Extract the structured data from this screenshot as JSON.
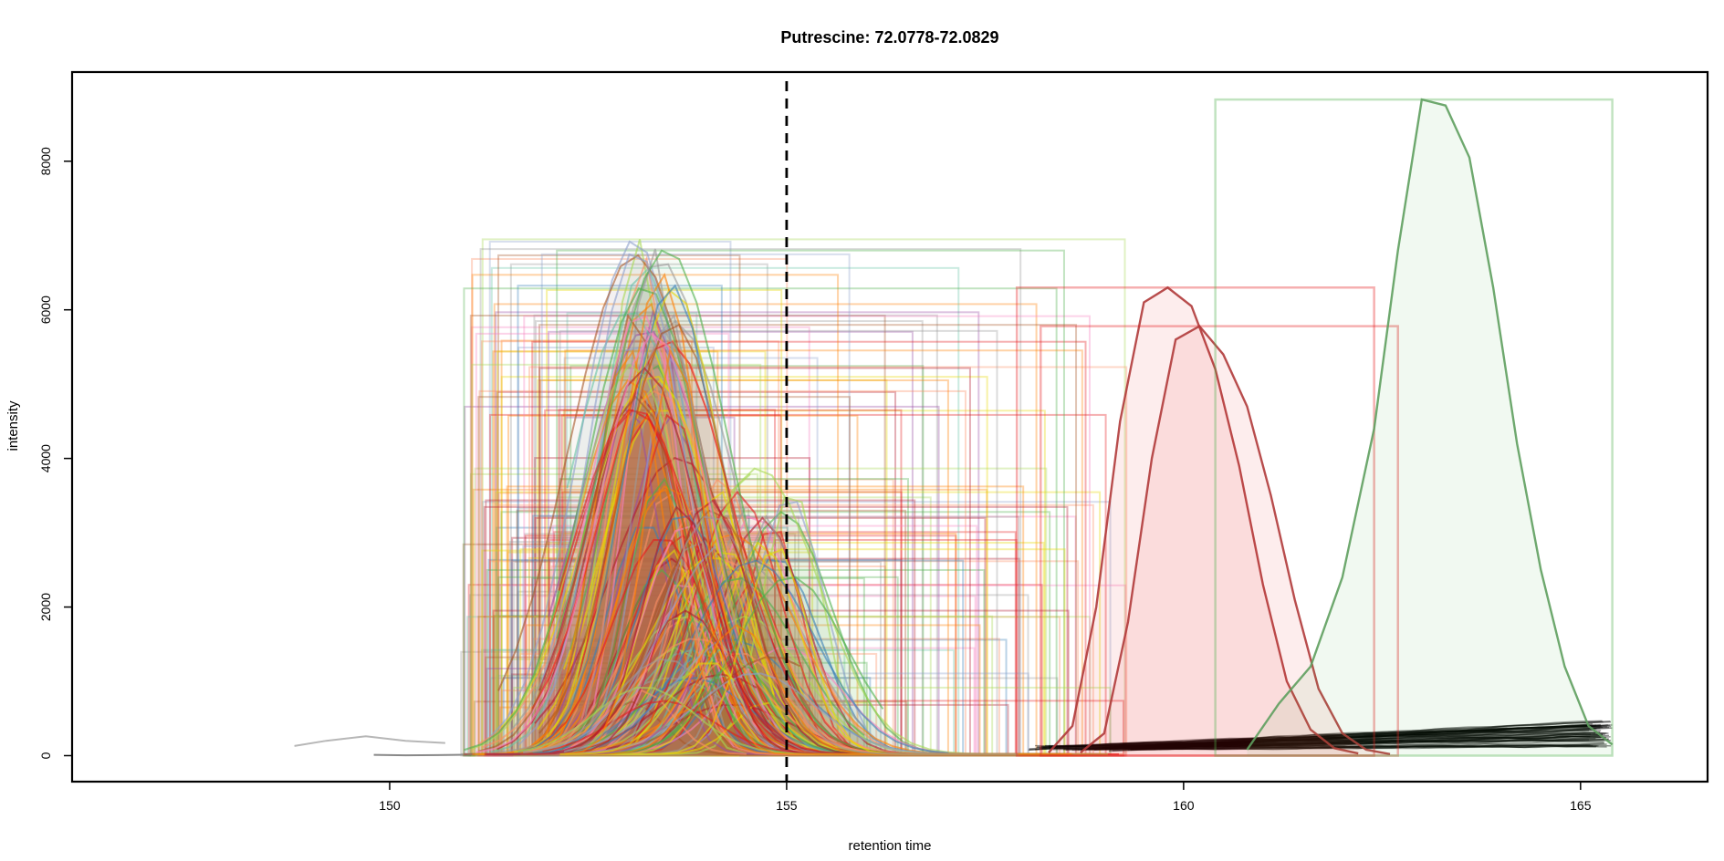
{
  "chart_data": {
    "type": "line",
    "title": "Putrescine: 72.0778-72.0829",
    "xlabel": "retention time",
    "ylabel": "intensity",
    "xlim": [
      146,
      166.6
    ],
    "ylim": [
      -350,
      9200
    ],
    "xticks": [
      150,
      155,
      160,
      165
    ],
    "yticks": [
      0,
      2000,
      4000,
      6000,
      8000
    ],
    "grid": false,
    "legend": "none",
    "reference_line": {
      "x": 155,
      "style": "dashed",
      "color": "#000000"
    },
    "series_palette": [
      "#E41A1C",
      "#377EB8",
      "#4DAF4A",
      "#984EA3",
      "#FF7F00",
      "#E6D800",
      "#A65628",
      "#F781BF",
      "#999999",
      "#66C2A5",
      "#FC8D62",
      "#8DA0CB",
      "#A6D854",
      "#B2182B"
    ],
    "background_traces": [
      {
        "x": [
          148.8,
          149.2,
          149.7,
          150.2,
          150.7
        ],
        "y": [
          130,
          200,
          260,
          200,
          170
        ],
        "color": "#999999"
      },
      {
        "x": [
          149.8,
          150.2,
          150.6,
          151.0,
          151.4
        ],
        "y": [
          10,
          5,
          8,
          12,
          20
        ],
        "color": "#555555"
      }
    ],
    "highlighted_peaks": [
      {
        "label": "peak-red-1",
        "color": "#E41A1C",
        "line_color": "#B03A3A",
        "rt_range": [
          157.9,
          162.4
        ],
        "max_intensity": 6300,
        "x": [
          158.3,
          158.6,
          158.9,
          159.2,
          159.5,
          159.8,
          160.1,
          160.4,
          160.7,
          161.0,
          161.3,
          161.6,
          161.9,
          162.2
        ],
        "y": [
          40,
          400,
          2000,
          4500,
          6100,
          6300,
          6050,
          5200,
          3900,
          2300,
          1000,
          350,
          100,
          30
        ]
      },
      {
        "label": "peak-red-2",
        "color": "#E41A1C",
        "line_color": "#B03A3A",
        "rt_range": [
          158.2,
          162.7
        ],
        "max_intensity": 5780,
        "x": [
          158.7,
          159.0,
          159.3,
          159.6,
          159.9,
          160.2,
          160.5,
          160.8,
          161.1,
          161.4,
          161.7,
          162.0,
          162.3,
          162.6
        ],
        "y": [
          40,
          300,
          1800,
          4000,
          5600,
          5780,
          5400,
          4700,
          3500,
          2100,
          900,
          300,
          80,
          20
        ]
      },
      {
        "label": "peak-green",
        "color": "#4DAF4A",
        "line_color": "#5E9E5E",
        "rt_range": [
          160.4,
          165.4
        ],
        "max_intensity": 8830,
        "x": [
          160.8,
          161.2,
          161.6,
          162.0,
          162.4,
          162.7,
          163.0,
          163.3,
          163.6,
          163.9,
          164.2,
          164.5,
          164.8,
          165.1,
          165.4
        ],
        "y": [
          80,
          700,
          1200,
          2400,
          4400,
          6800,
          8830,
          8750,
          8050,
          6300,
          4200,
          2500,
          1200,
          400,
          150
        ]
      }
    ],
    "cluster": {
      "description_colors": true,
      "rt_start_range": [
        150.9,
        152.3
      ],
      "apex_range": [
        153.0,
        153.6
      ],
      "apex_intensity_range": [
        600,
        6950
      ],
      "box_right_range": [
        153.8,
        159.3
      ],
      "trace_count": 140
    },
    "tail_traces": {
      "x_range": [
        158.0,
        165.4
      ],
      "y_range": [
        60,
        480
      ],
      "color": "#000000",
      "count": 60
    }
  }
}
